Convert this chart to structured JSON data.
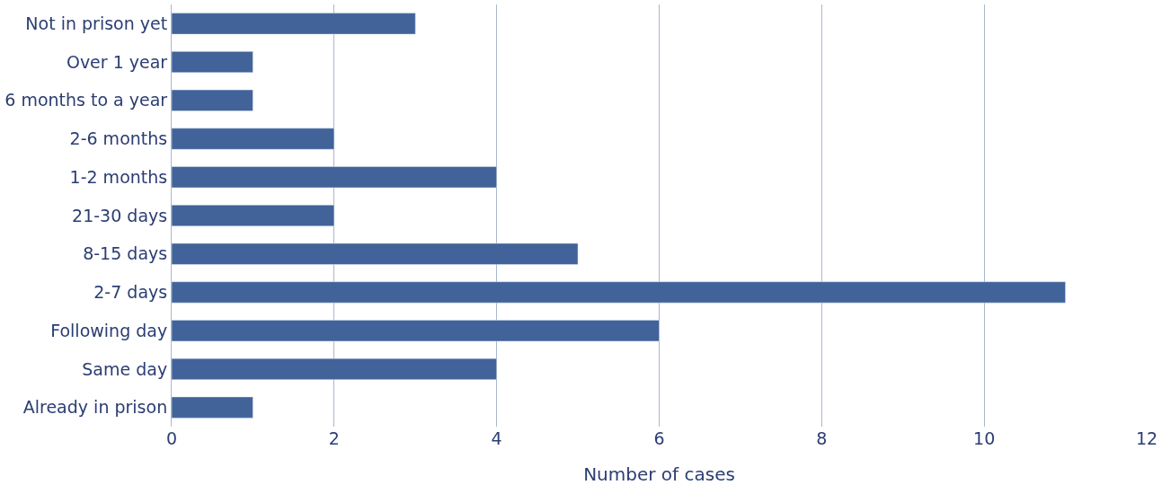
{
  "chart_data": {
    "type": "bar",
    "orientation": "horizontal",
    "xlabel": "Number of cases",
    "categories": [
      "Not in prison yet",
      "Over 1 year",
      "6 months to a year",
      "2-6 months",
      "1-2 months",
      "21-30 days",
      "8-15 days",
      "2-7 days",
      "Following day",
      "Same day",
      "Already in prison"
    ],
    "values": [
      3,
      1,
      1,
      2,
      4,
      2,
      5,
      11,
      6,
      4,
      1
    ],
    "color": "#41639a",
    "xlim": [
      0,
      12
    ],
    "xticks": [
      0,
      2,
      4,
      6,
      8,
      10,
      12
    ],
    "grid": "x"
  }
}
